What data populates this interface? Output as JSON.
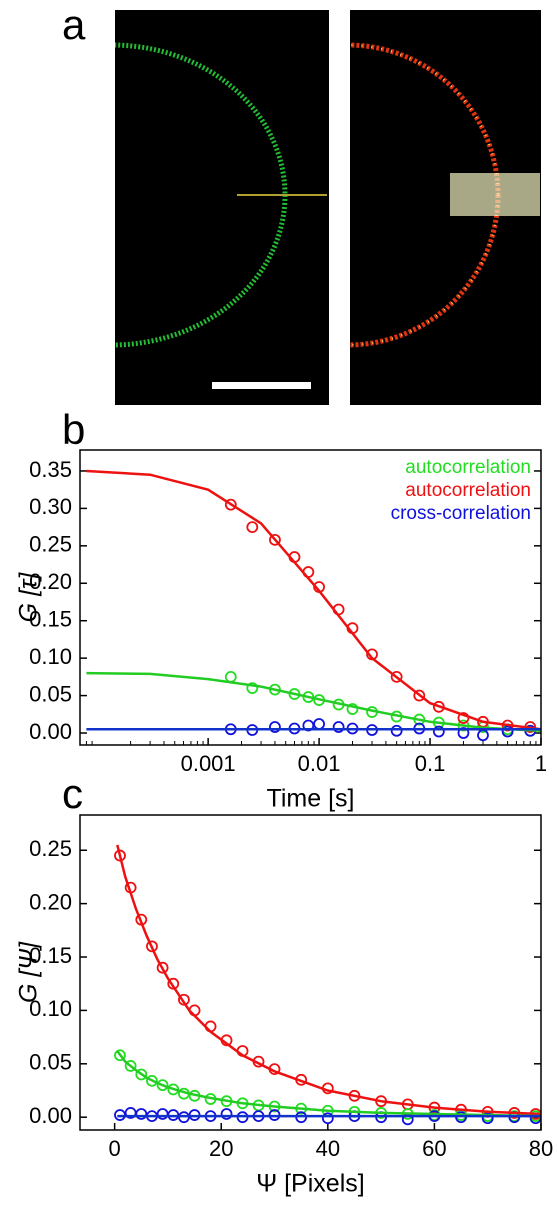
{
  "panel_a": {
    "label": "a"
  },
  "chart_data": [
    {
      "type": "scatter",
      "panel_label": "b",
      "x_label": "Time [s]",
      "y_label": "G [τ]",
      "xscale": "log",
      "xlim": [
        7e-05,
        1
      ],
      "ylim": [
        -0.016,
        0.378
      ],
      "xticks": [
        0.001,
        0.01,
        0.1,
        1
      ],
      "yticks": [
        {
          "value": 0,
          "label": "0.00"
        },
        {
          "value": 0.05,
          "label": "0.05"
        },
        {
          "value": 0.1,
          "label": "0.10"
        },
        {
          "value": 0.15,
          "label": "0.15"
        },
        {
          "value": 0.2,
          "label": "0.20"
        },
        {
          "value": 0.25,
          "label": "0.25"
        },
        {
          "value": 0.3,
          "label": "0.30"
        },
        {
          "value": 0.35,
          "label": "0.35"
        }
      ],
      "legend": "upper right",
      "series": [
        {
          "name": "autocorrelation",
          "color": "#22dd22",
          "x": [
            0.0016,
            0.0025,
            0.004,
            0.006,
            0.008,
            0.01,
            0.015,
            0.02,
            0.03,
            0.05,
            0.08,
            0.12,
            0.2,
            0.3,
            0.5,
            0.8
          ],
          "values": [
            0.075,
            0.06,
            0.058,
            0.052,
            0.048,
            0.044,
            0.038,
            0.032,
            0.028,
            0.022,
            0.018,
            0.014,
            0.01,
            0.008,
            0.005,
            0.003
          ]
        },
        {
          "name": "autocorrelation",
          "color": "#ee1111",
          "x": [
            0.0016,
            0.0025,
            0.004,
            0.006,
            0.008,
            0.01,
            0.015,
            0.02,
            0.03,
            0.05,
            0.08,
            0.12,
            0.2,
            0.3,
            0.5,
            0.8
          ],
          "values": [
            0.305,
            0.275,
            0.258,
            0.235,
            0.215,
            0.195,
            0.165,
            0.14,
            0.105,
            0.075,
            0.05,
            0.035,
            0.02,
            0.015,
            0.01,
            0.008
          ]
        },
        {
          "name": "cross-correlation",
          "color": "#1111dd",
          "x": [
            0.0016,
            0.0025,
            0.004,
            0.006,
            0.008,
            0.01,
            0.015,
            0.02,
            0.03,
            0.05,
            0.08,
            0.12,
            0.2,
            0.3,
            0.5,
            0.8
          ],
          "values": [
            0.005,
            0.004,
            0.008,
            0.006,
            0.01,
            0.012,
            0.008,
            0.006,
            0.004,
            0.003,
            0.006,
            0.002,
            0,
            -0.003,
            0.002,
            0.003
          ]
        }
      ],
      "fits": [
        {
          "color": "#22cc22",
          "x": [
            8e-05,
            0.0003,
            0.001,
            0.003,
            0.01,
            0.03,
            0.1,
            0.3,
            1
          ],
          "values": [
            0.08,
            0.079,
            0.072,
            0.062,
            0.045,
            0.03,
            0.015,
            0.007,
            0.003
          ]
        },
        {
          "color": "#ee1111",
          "x": [
            8e-05,
            0.0003,
            0.001,
            0.003,
            0.01,
            0.03,
            0.1,
            0.3,
            1
          ],
          "values": [
            0.35,
            0.345,
            0.325,
            0.28,
            0.19,
            0.1,
            0.04,
            0.015,
            0.005
          ]
        },
        {
          "color": "#1133cc",
          "x": [
            8e-05,
            0.0003,
            0.001,
            0.003,
            0.01,
            0.03,
            0.1,
            0.3,
            1
          ],
          "values": [
            0.005,
            0.005,
            0.005,
            0.005,
            0.005,
            0.005,
            0.005,
            0.005,
            0.005
          ]
        }
      ]
    },
    {
      "type": "scatter",
      "panel_label": "c",
      "x_label": "Ψ [Pixels]",
      "y_label": "G [Ψ]",
      "xscale": "linear",
      "xlim": [
        -6.5,
        80
      ],
      "ylim": [
        -0.012,
        0.283
      ],
      "xticks": [
        0,
        20,
        40,
        60,
        80
      ],
      "yticks": [
        {
          "value": 0,
          "label": "0.00"
        },
        {
          "value": 0.05,
          "label": "0.05"
        },
        {
          "value": 0.1,
          "label": "0.10"
        },
        {
          "value": 0.15,
          "label": "0.15"
        },
        {
          "value": 0.2,
          "label": "0.20"
        },
        {
          "value": 0.25,
          "label": "0.25"
        }
      ],
      "series": [
        {
          "color": "#ee1111",
          "x": [
            1,
            3,
            5,
            7,
            9,
            11,
            13,
            15,
            18,
            21,
            24,
            27,
            30,
            35,
            40,
            45,
            50,
            55,
            60,
            65,
            70,
            75,
            79
          ],
          "values": [
            0.245,
            0.215,
            0.185,
            0.16,
            0.14,
            0.125,
            0.11,
            0.1,
            0.085,
            0.072,
            0.062,
            0.052,
            0.045,
            0.035,
            0.027,
            0.02,
            0.015,
            0.012,
            0.009,
            0.007,
            0.005,
            0.004,
            0.003
          ]
        },
        {
          "color": "#22dd22",
          "x": [
            1,
            3,
            5,
            7,
            9,
            11,
            13,
            15,
            18,
            21,
            24,
            27,
            30,
            35,
            40,
            45,
            50,
            55,
            60,
            65,
            70,
            75,
            79
          ],
          "values": [
            0.058,
            0.048,
            0.04,
            0.034,
            0.03,
            0.026,
            0.022,
            0.02,
            0.017,
            0.015,
            0.013,
            0.011,
            0.01,
            0.008,
            0.006,
            0.005,
            0.004,
            0.003,
            0.002,
            0.002,
            0.001,
            0.001,
            0.001
          ]
        },
        {
          "color": "#1111dd",
          "x": [
            1,
            3,
            5,
            7,
            9,
            11,
            13,
            15,
            18,
            21,
            24,
            27,
            30,
            35,
            40,
            45,
            50,
            55,
            60,
            65,
            70,
            75,
            79
          ],
          "values": [
            0.002,
            0.004,
            0.003,
            0.001,
            0.003,
            0.002,
            0,
            0.002,
            0.001,
            0.003,
            0,
            0.001,
            0.002,
            0,
            -0.001,
            0.001,
            0,
            -0.002,
            0.001,
            0,
            -0.001,
            0,
            -0.001
          ]
        }
      ],
      "fits": [
        {
          "color": "#ee1111",
          "x": [
            0.5,
            2,
            4,
            6,
            8,
            10,
            14,
            18,
            24,
            30,
            40,
            50,
            60,
            70,
            80
          ],
          "values": [
            0.255,
            0.225,
            0.195,
            0.17,
            0.148,
            0.13,
            0.1,
            0.08,
            0.058,
            0.043,
            0.025,
            0.015,
            0.009,
            0.005,
            0.003
          ]
        },
        {
          "color": "#22cc22",
          "x": [
            0.5,
            2,
            4,
            6,
            8,
            10,
            14,
            18,
            24,
            30,
            40,
            50,
            60,
            70,
            80
          ],
          "values": [
            0.062,
            0.052,
            0.044,
            0.037,
            0.032,
            0.028,
            0.022,
            0.018,
            0.013,
            0.01,
            0.006,
            0.004,
            0.003,
            0.002,
            0.001
          ]
        },
        {
          "color": "#1133cc",
          "x": [
            0.5,
            2,
            4,
            6,
            8,
            10,
            14,
            18,
            24,
            30,
            40,
            50,
            60,
            70,
            80
          ],
          "values": [
            0.001,
            0.001,
            0.001,
            0.001,
            0.001,
            0.001,
            0.001,
            0.001,
            0.001,
            0.001,
            0.001,
            0.001,
            0.001,
            0.001,
            0.001
          ]
        }
      ]
    }
  ]
}
